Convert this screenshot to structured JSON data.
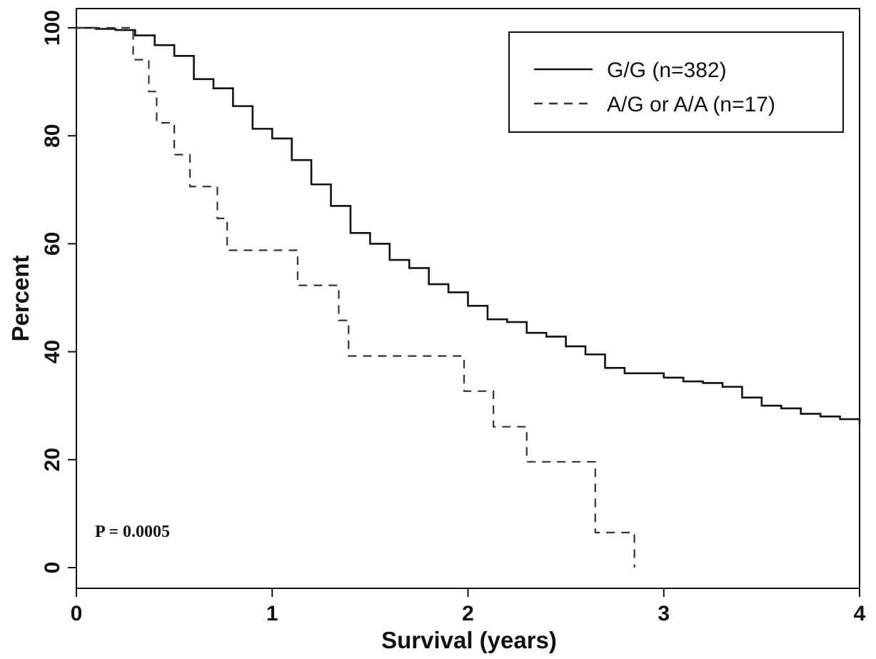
{
  "chart_data": {
    "type": "line",
    "step": true,
    "xlabel": "Survival (years)",
    "ylabel": "Percent",
    "xlim": [
      0,
      4
    ],
    "ylim": [
      0,
      100
    ],
    "xticks": [
      "0",
      "1",
      "2",
      "3",
      "4"
    ],
    "yticks": [
      "0",
      "20",
      "40",
      "60",
      "80",
      "100"
    ],
    "grid": false,
    "legend_position": "top-right",
    "annotation": "P = 0.0005",
    "series": [
      {
        "name": "G/G (n=382)",
        "style": "solid",
        "color": "#111111",
        "x": [
          0,
          0.1,
          0.2,
          0.3,
          0.4,
          0.5,
          0.6,
          0.7,
          0.8,
          0.9,
          1.0,
          1.1,
          1.2,
          1.3,
          1.4,
          1.5,
          1.6,
          1.7,
          1.8,
          1.9,
          2.0,
          2.1,
          2.2,
          2.3,
          2.4,
          2.5,
          2.6,
          2.7,
          2.8,
          2.9,
          3.0,
          3.1,
          3.2,
          3.3,
          3.4,
          3.5,
          3.6,
          3.7,
          3.8,
          3.9,
          4.0
        ],
        "y": [
          100,
          99.8,
          99.6,
          98.6,
          96.8,
          94.8,
          90.5,
          88.8,
          85.5,
          81.3,
          79.5,
          75.5,
          71.0,
          67.0,
          62.0,
          60.0,
          57.0,
          55.5,
          52.5,
          51.0,
          48.5,
          46.0,
          45.5,
          43.5,
          42.8,
          41.0,
          39.5,
          37.0,
          36.0,
          36.0,
          35.2,
          34.5,
          34.2,
          33.5,
          31.5,
          30.0,
          29.5,
          28.5,
          28.0,
          27.5,
          26.5
        ]
      },
      {
        "name": "A/G or A/A (n=17)",
        "style": "dashed",
        "color": "#333333",
        "x": [
          0,
          0.29,
          0.37,
          0.41,
          0.5,
          0.58,
          0.72,
          0.77,
          1.13,
          1.34,
          1.39,
          1.98,
          2.13,
          2.3,
          2.65,
          2.85
        ],
        "y": [
          100,
          94.1,
          88.2,
          82.4,
          76.5,
          70.6,
          64.7,
          58.8,
          52.3,
          45.8,
          39.2,
          32.7,
          26.1,
          19.6,
          6.5,
          0
        ]
      }
    ]
  }
}
